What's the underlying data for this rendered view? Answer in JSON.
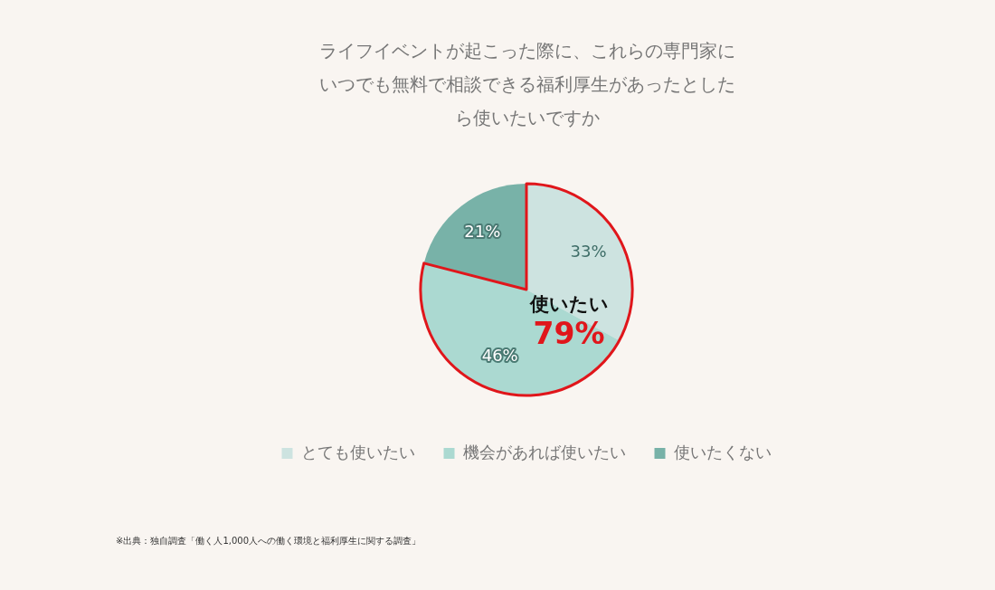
{
  "chart_data": {
    "type": "pie",
    "title": "ライフイベントが起こった際に、これらの専門家にいつでも無料で相談できる福利厚生があったとしたら使いたいですか",
    "categories": [
      "とても使いたい",
      "機会があれば使いたい",
      "使いたくない"
    ],
    "values": [
      33,
      46,
      21
    ],
    "value_labels": [
      "33%",
      "46%",
      "21%"
    ],
    "colors": [
      "#cde3e0",
      "#abd9d1",
      "#78b2a8"
    ],
    "legend": "bottom",
    "annotations": [
      "使いたい",
      "79%",
      "※出典：独自調査「働く人1,000人への働く環境と福利厚生に関する調査」"
    ]
  }
}
